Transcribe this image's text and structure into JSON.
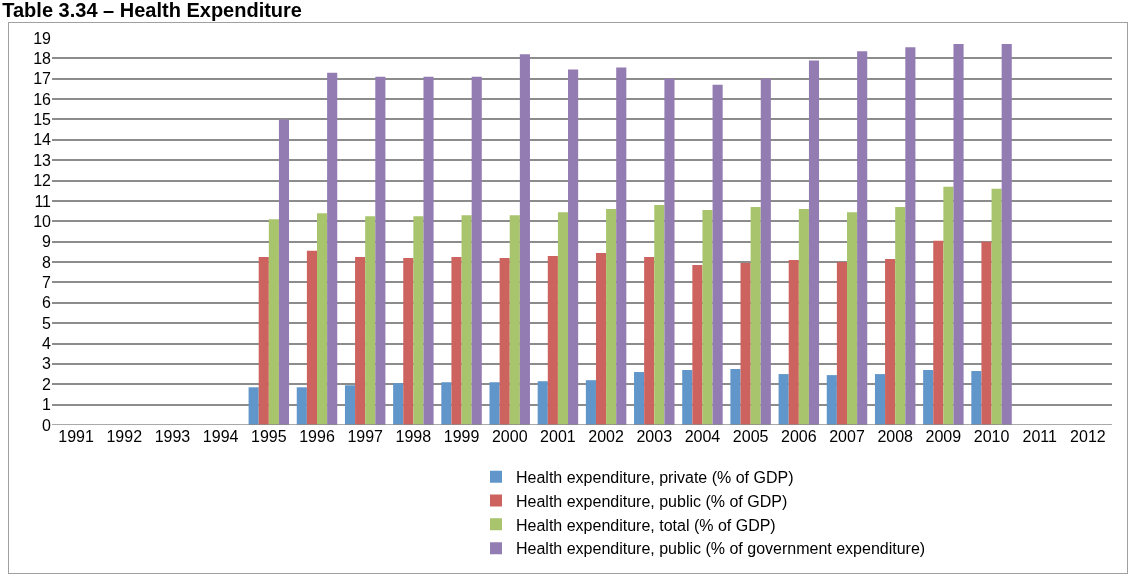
{
  "chart_data": {
    "type": "bar",
    "title": "Table 3.34 – Health Expenditure",
    "categories": [
      "1991",
      "1992",
      "1993",
      "1994",
      "1995",
      "1996",
      "1997",
      "1998",
      "1999",
      "2000",
      "2001",
      "2002",
      "2003",
      "2004",
      "2005",
      "2006",
      "2007",
      "2008",
      "2009",
      "2010",
      "2011",
      "2012"
    ],
    "series": [
      {
        "name": "Health expenditure, private (% of GDP)",
        "color": "#6096c9",
        "values": [
          null,
          null,
          null,
          null,
          1.85,
          1.85,
          1.95,
          2.05,
          2.1,
          2.1,
          2.15,
          2.2,
          2.6,
          2.7,
          2.75,
          2.5,
          2.45,
          2.5,
          2.7,
          2.65,
          null,
          null
        ]
      },
      {
        "name": "Health expenditure, public (% of GDP)",
        "color": "#cd635e",
        "values": [
          null,
          null,
          null,
          null,
          8.25,
          8.55,
          8.25,
          8.2,
          8.25,
          8.2,
          8.3,
          8.45,
          8.25,
          7.85,
          7.95,
          8.1,
          8.0,
          8.15,
          9.05,
          9.0,
          null,
          null
        ]
      },
      {
        "name": "Health expenditure, total (% of GDP)",
        "color": "#a8c46c",
        "values": [
          null,
          null,
          null,
          null,
          10.1,
          10.4,
          10.25,
          10.25,
          10.3,
          10.3,
          10.45,
          10.6,
          10.8,
          10.55,
          10.7,
          10.6,
          10.45,
          10.7,
          11.7,
          11.6,
          null,
          null
        ]
      },
      {
        "name": "Health expenditure, public (% of government expenditure)",
        "color": "#937cb2",
        "values": [
          null,
          null,
          null,
          null,
          15.0,
          17.3,
          17.1,
          17.1,
          17.1,
          18.2,
          17.45,
          17.55,
          17.0,
          16.7,
          17.0,
          17.9,
          18.35,
          18.55,
          18.7,
          18.7,
          null,
          null
        ]
      }
    ],
    "ylim": [
      0,
      19
    ],
    "yticks": [
      0,
      1,
      2,
      3,
      4,
      5,
      6,
      7,
      8,
      9,
      10,
      11,
      12,
      13,
      14,
      15,
      16,
      17,
      18,
      19
    ],
    "grid": "y",
    "legend": "bottom"
  }
}
